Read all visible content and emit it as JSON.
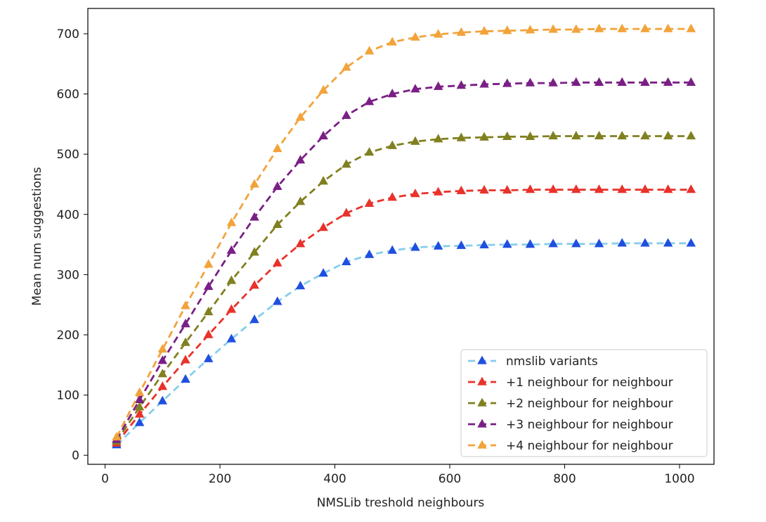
{
  "chart_data": {
    "type": "line",
    "title": "",
    "xlabel": "NMSLib treshold neighbours",
    "ylabel": "Mean num suggestions",
    "xlim": [
      -30,
      1060
    ],
    "ylim": [
      -15,
      742
    ],
    "xticks": [
      0,
      200,
      400,
      600,
      800,
      1000
    ],
    "yticks": [
      0,
      100,
      200,
      300,
      400,
      500,
      600,
      700
    ],
    "legend_position": "lower-right",
    "x": [
      20,
      60,
      100,
      140,
      180,
      220,
      260,
      300,
      340,
      380,
      420,
      460,
      500,
      540,
      580,
      620,
      660,
      700,
      740,
      780,
      820,
      860,
      900,
      940,
      980,
      1020
    ],
    "series": [
      {
        "name": "nmslib variants",
        "line_color": "#87ceeb",
        "marker_color": "#1f4fe0",
        "values": [
          17,
          54,
          90,
          126,
          160,
          193,
          225,
          255,
          281,
          302,
          321,
          333,
          340,
          345,
          347,
          348,
          349,
          350,
          350,
          351,
          351,
          351,
          352,
          352,
          352,
          352
        ]
      },
      {
        "name": "+1 neighbour for neighbour",
        "line_color": "#e8322a",
        "marker_color": "#e8322a",
        "values": [
          20,
          68,
          114,
          158,
          200,
          242,
          282,
          319,
          351,
          378,
          402,
          418,
          428,
          434,
          437,
          439,
          440,
          440,
          441,
          441,
          441,
          441,
          441,
          441,
          441,
          441
        ]
      },
      {
        "name": "+2 neighbour for neighbour",
        "line_color": "#808020",
        "marker_color": "#808020",
        "values": [
          23,
          80,
          135,
          187,
          238,
          290,
          337,
          383,
          421,
          455,
          483,
          503,
          514,
          521,
          525,
          527,
          528,
          529,
          529,
          530,
          530,
          530,
          530,
          530,
          530,
          530
        ]
      },
      {
        "name": "+3 neighbour for neighbour",
        "line_color": "#7a1f85",
        "marker_color": "#7a1f85",
        "values": [
          26,
          92,
          157,
          218,
          280,
          340,
          395,
          446,
          490,
          530,
          564,
          587,
          600,
          608,
          612,
          614,
          616,
          617,
          618,
          618,
          619,
          619,
          619,
          619,
          619,
          619
        ]
      },
      {
        "name": "+4 neighbour for neighbour",
        "line_color": "#f2a33a",
        "marker_color": "#f2a33a",
        "values": [
          30,
          104,
          176,
          248,
          317,
          386,
          450,
          509,
          561,
          606,
          644,
          671,
          686,
          694,
          699,
          702,
          704,
          705,
          706,
          707,
          707,
          708,
          708,
          708,
          708,
          708
        ]
      }
    ]
  }
}
